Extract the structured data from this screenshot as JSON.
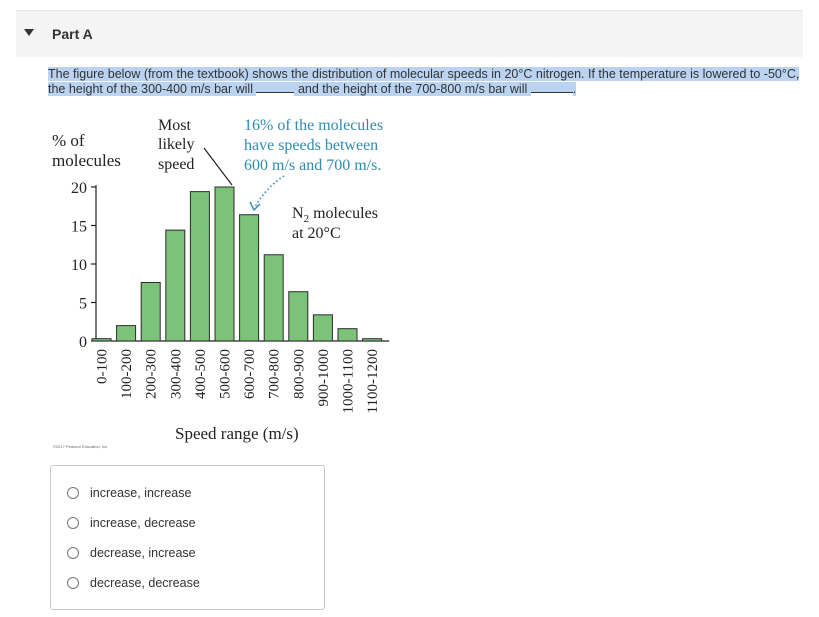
{
  "part": {
    "title": "Part A"
  },
  "question": {
    "text_1": "The figure below (from the textbook) shows the distribution of molecular speeds in 20°C nitrogen. If the temperature is lowered to -50°C, the height of the 300-400 m/s bar will ",
    "text_2": " and the height of the 700-800 m/s bar will ",
    "text_3": "."
  },
  "figure": {
    "ylabel_line1": "% of",
    "ylabel_line2": "molecules",
    "annotation_most_likely": [
      "Most",
      "likely",
      "speed"
    ],
    "annotation_16pct": [
      "16% of the molecules",
      "have speeds between",
      "600 m/s and 700 m/s."
    ],
    "series_label_line1_main": "N",
    "series_label_line1_sub": "2",
    "series_label_line1_rest": " molecules",
    "series_label_line2": "at 20°C",
    "xlabel": "Speed range (m/s)",
    "copyright": "©2017 Pearson Education, Inc",
    "colors": {
      "bar_fill": "#7ac379",
      "bar_stroke": "#2b2b2b",
      "accent_teal": "#2d8bb2"
    }
  },
  "chart_data": {
    "type": "bar",
    "categories": [
      "0-100",
      "100-200",
      "200-300",
      "300-400",
      "400-500",
      "500-600",
      "600-700",
      "700-800",
      "800-900",
      "900-1000",
      "1000-1100",
      "1100-1200"
    ],
    "values": [
      0.3,
      2.0,
      7.6,
      14.4,
      19.4,
      20.0,
      16.4,
      11.2,
      6.4,
      3.4,
      1.6,
      0.3
    ],
    "ylabel": "% of molecules",
    "xlabel": "Speed range (m/s)",
    "yticks": [
      0,
      5,
      10,
      15,
      20
    ],
    "ylim": [
      0,
      20
    ],
    "grid": false
  },
  "answers": {
    "options": [
      "increase, increase",
      "increase, decrease",
      "decrease, increase",
      "decrease, decrease"
    ]
  }
}
